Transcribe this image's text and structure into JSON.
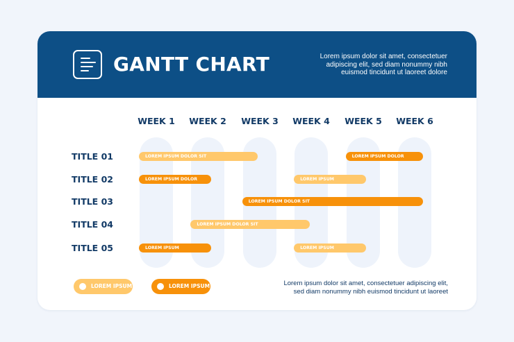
{
  "header": {
    "title": "GANTT CHART",
    "description_lines": [
      "Lorem ipsum dolor sit amet, consectetuer",
      "adipiscing elit, sed diam nonummy nibh",
      "euismod tincidunt ut laoreet dolore"
    ],
    "logo_icon": "document-lines-icon"
  },
  "weeks": [
    "WEEK 1",
    "WEEK 2",
    "WEEK 3",
    "WEEK 4",
    "WEEK 5",
    "WEEK 6"
  ],
  "rows": [
    {
      "label": "TITLE 01",
      "bars": [
        {
          "start_week": 1,
          "end_week": 3.3,
          "color": "light",
          "text": "LOREM IPSUM DOLOR SIT"
        },
        {
          "start_week": 5,
          "end_week": 6.5,
          "color": "dark",
          "text": "LOREM IPSUM DOLOR"
        }
      ]
    },
    {
      "label": "TITLE 02",
      "bars": [
        {
          "start_week": 1,
          "end_week": 2.4,
          "color": "dark",
          "text": "LOREM IPSUM DOLOR"
        },
        {
          "start_week": 4,
          "end_week": 5.4,
          "color": "light",
          "text": "LOREM IPSUM"
        }
      ]
    },
    {
      "label": "TITLE 03",
      "bars": [
        {
          "start_week": 3,
          "end_week": 6.5,
          "color": "dark",
          "text": "LOREM IPSUM DOLOR SIT"
        }
      ]
    },
    {
      "label": "TITLE 04",
      "bars": [
        {
          "start_week": 2,
          "end_week": 4.3,
          "color": "light",
          "text": "LOREM IPSUM DOLOR SIT"
        }
      ]
    },
    {
      "label": "TITLE 05",
      "bars": [
        {
          "start_week": 1,
          "end_week": 2.4,
          "color": "dark",
          "text": "LOREM IPSUM"
        },
        {
          "start_week": 4,
          "end_week": 5.4,
          "color": "light",
          "text": "LOREM IPSUM"
        }
      ]
    }
  ],
  "legend": [
    {
      "text": "LOREM IPSUM",
      "color": "light"
    },
    {
      "text": "LOREM IPSUM",
      "color": "dark"
    }
  ],
  "footer": {
    "description_lines": [
      "Lorem ipsum dolor sit amet, consectetuer adipiscing elit,",
      "sed diam nonummy nibh euismod tincidunt ut laoreet"
    ]
  },
  "colors": {
    "header_bg": "#0d4f86",
    "light_bar": "#ffc86b",
    "dark_bar": "#f7910a",
    "column_bg": "#eef3fb",
    "text_dark": "#123a66"
  }
}
